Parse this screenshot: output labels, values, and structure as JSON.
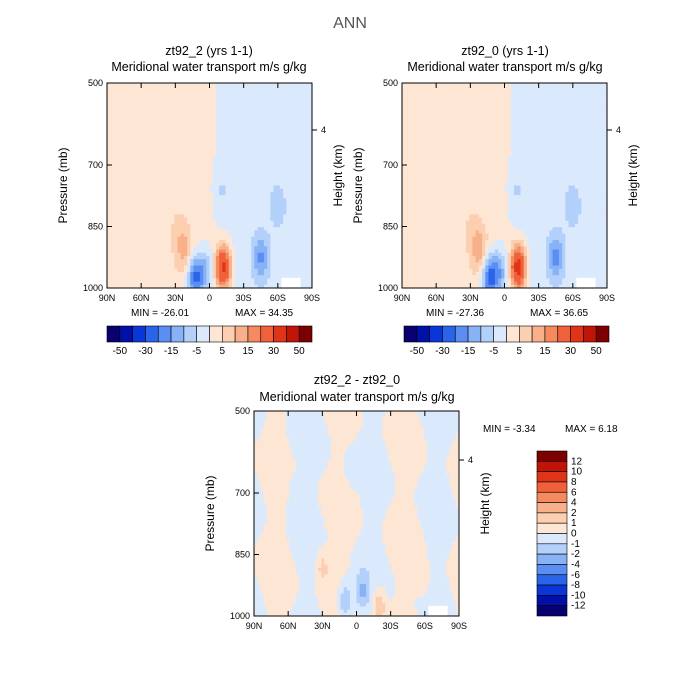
{
  "figure_title": "ANN",
  "chart_data": [
    {
      "type": "heatmap",
      "title": "zt92_2 (yrs 1-1)",
      "subtitle": "Meridional water transport m/s g/kg",
      "xlabel": "",
      "ylabel": "Pressure (mb)",
      "y2label": "Height (km)",
      "x_ticks": [
        "90N",
        "60N",
        "30N",
        "0",
        "30S",
        "60S",
        "90S"
      ],
      "y_ticks": [
        "500",
        "700",
        "850",
        "1000"
      ],
      "y2_ticks": [
        "4"
      ],
      "xlim": [
        90,
        -90
      ],
      "ylim": [
        500,
        1000
      ],
      "min_label": "MIN = -26.01",
      "max_label": "MAX =  34.35",
      "colorbar": {
        "orientation": "horizontal",
        "labels": [
          "-50",
          "-30",
          "-15",
          "-5",
          "5",
          "15",
          "30",
          "50"
        ],
        "colors": [
          "#08006e",
          "#0010a8",
          "#0a36d8",
          "#2a64ea",
          "#5a8ef2",
          "#87b2f6",
          "#b2d0f9",
          "#dbe9fc",
          "#fde7d4",
          "#fbcfb0",
          "#f8b08a",
          "#f58a60",
          "#f0603a",
          "#e03418",
          "#c01408",
          "#7c0000"
        ]
      },
      "features": [
        {
          "lat": 22,
          "p": 910,
          "value": 10
        },
        {
          "lat": 13,
          "p": 975,
          "value": -22
        },
        {
          "lat": 4,
          "p": 960,
          "value": -12
        },
        {
          "lat": -12,
          "p": 950,
          "value": 34
        },
        {
          "lat": -45,
          "p": 925,
          "value": -13
        },
        {
          "lat": -60,
          "p": 800,
          "value": -5
        },
        {
          "lat": -10,
          "p": 760,
          "value": -4
        },
        {
          "lat": 28,
          "p": 860,
          "value": 3
        }
      ]
    },
    {
      "type": "heatmap",
      "title": "zt92_0 (yrs 1-1)",
      "subtitle": "Meridional water transport m/s g/kg",
      "xlabel": "",
      "ylabel": "Pressure (mb)",
      "y2label": "Height (km)",
      "x_ticks": [
        "90N",
        "60N",
        "30N",
        "0",
        "30S",
        "60S",
        "90S"
      ],
      "y_ticks": [
        "500",
        "700",
        "850",
        "1000"
      ],
      "y2_ticks": [
        "4"
      ],
      "xlim": [
        90,
        -90
      ],
      "ylim": [
        500,
        1000
      ],
      "min_label": "MIN = -27.36",
      "max_label": "MAX =  36.65",
      "colorbar": {
        "orientation": "horizontal",
        "labels": [
          "-50",
          "-30",
          "-15",
          "-5",
          "5",
          "15",
          "30",
          "50"
        ],
        "colors": [
          "#08006e",
          "#0010a8",
          "#0a36d8",
          "#2a64ea",
          "#5a8ef2",
          "#87b2f6",
          "#b2d0f9",
          "#dbe9fc",
          "#fde7d4",
          "#fbcfb0",
          "#f8b08a",
          "#f58a60",
          "#f0603a",
          "#e03418",
          "#c01408",
          "#7c0000"
        ]
      },
      "features": [
        {
          "lat": 22,
          "p": 910,
          "value": 11
        },
        {
          "lat": 13,
          "p": 975,
          "value": -24
        },
        {
          "lat": 4,
          "p": 960,
          "value": -13
        },
        {
          "lat": -12,
          "p": 950,
          "value": 36
        },
        {
          "lat": -45,
          "p": 925,
          "value": -14
        },
        {
          "lat": -60,
          "p": 800,
          "value": -5
        },
        {
          "lat": -10,
          "p": 760,
          "value": -4
        },
        {
          "lat": 28,
          "p": 860,
          "value": 3
        }
      ]
    },
    {
      "type": "heatmap",
      "title": "zt92_2 - zt92_0",
      "subtitle": "Meridional water transport m/s g/kg",
      "xlabel": "",
      "ylabel": "Pressure (mb)",
      "y2label": "Height (km)",
      "x_ticks": [
        "90N",
        "60N",
        "30N",
        "0",
        "30S",
        "60S",
        "90S"
      ],
      "y_ticks": [
        "500",
        "700",
        "850",
        "1000"
      ],
      "y2_ticks": [
        "4"
      ],
      "xlim": [
        90,
        -90
      ],
      "ylim": [
        500,
        1000
      ],
      "min_label": "MIN =   -3.34",
      "max_label": "MAX =    6.18",
      "colorbar": {
        "orientation": "vertical",
        "labels": [
          "12",
          "10",
          "8",
          "6",
          "4",
          "2",
          "1",
          "0",
          "-1",
          "-2",
          "-4",
          "-6",
          "-8",
          "-10",
          "-12"
        ],
        "colors": [
          "#7c0000",
          "#c01408",
          "#e03418",
          "#f0603a",
          "#f58a60",
          "#f8b08a",
          "#fbcfb0",
          "#fde7d4",
          "#dbe9fc",
          "#b2d0f9",
          "#87b2f6",
          "#5a8ef2",
          "#2a64ea",
          "#0a36d8",
          "#0010a8",
          "#08006e"
        ]
      },
      "features": [
        {
          "lat": -5,
          "p": 940,
          "value": -2
        },
        {
          "lat": 10,
          "p": 965,
          "value": -2.5
        },
        {
          "lat": -20,
          "p": 975,
          "value": 2
        },
        {
          "lat": 30,
          "p": 880,
          "value": 1.5
        },
        {
          "lat": 55,
          "p": 700,
          "value": -0.6
        },
        {
          "lat": 5,
          "p": 640,
          "value": -0.6
        },
        {
          "lat": -40,
          "p": 780,
          "value": -0.6
        },
        {
          "lat": 70,
          "p": 900,
          "value": -0.6
        },
        {
          "lat": -60,
          "p": 930,
          "value": 0.5
        }
      ]
    }
  ]
}
